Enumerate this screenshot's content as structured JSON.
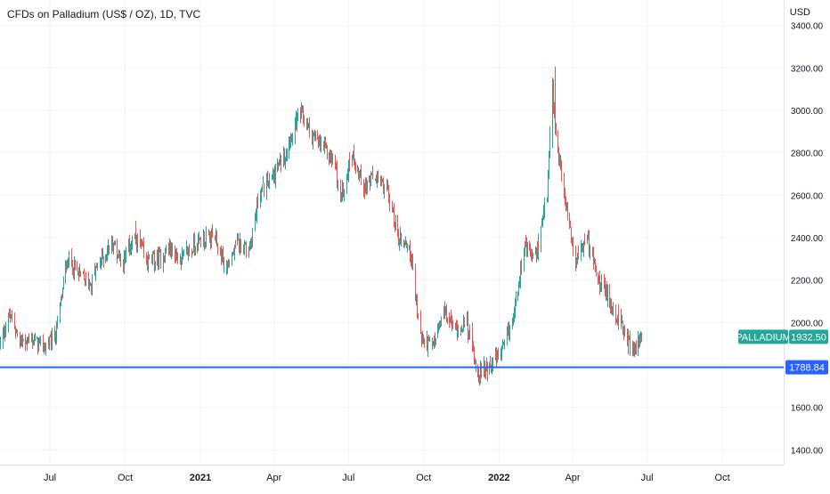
{
  "title": "CFDs on Palladium (US$ / OZ), 1D, TVC",
  "unit": "USD",
  "colors": {
    "up": "#26a69a",
    "down": "#ef5350",
    "grid": "#f0f3fa",
    "hline": "#2962ff",
    "badge_symbol_bg": "#26a69a",
    "badge_hline_bg": "#2962ff"
  },
  "chart_data": {
    "type": "candlestick",
    "title": "CFDs on Palladium (US$ / OZ), 1D, TVC",
    "ylabel": "USD",
    "ylim": [
      1330,
      3520
    ],
    "y_ticks": [
      1400,
      1600,
      1800,
      2000,
      2200,
      2400,
      2600,
      2800,
      3000,
      3200,
      3400
    ],
    "x_ticks": [
      {
        "label": "Jul",
        "date": "2020-07-01",
        "bold": false
      },
      {
        "label": "Oct",
        "date": "2020-10-01",
        "bold": false
      },
      {
        "label": "2021",
        "date": "2021-01-01",
        "bold": true
      },
      {
        "label": "Apr",
        "date": "2021-04-01",
        "bold": false
      },
      {
        "label": "Jul",
        "date": "2021-07-01",
        "bold": false
      },
      {
        "label": "Oct",
        "date": "2021-10-01",
        "bold": false
      },
      {
        "label": "2022",
        "date": "2022-01-01",
        "bold": true
      },
      {
        "label": "Apr",
        "date": "2022-04-01",
        "bold": false
      },
      {
        "label": "Jul",
        "date": "2022-07-01",
        "bold": false
      },
      {
        "label": "Oct",
        "date": "2022-10-01",
        "bold": false
      }
    ],
    "date_range": [
      "2020-05-01",
      "2022-12-15"
    ],
    "last_date": "2022-06-24",
    "close_path": [
      [
        "2020-05-01",
        1900
      ],
      [
        "2020-05-12",
        2030
      ],
      [
        "2020-05-25",
        1910
      ],
      [
        "2020-06-10",
        1920
      ],
      [
        "2020-06-25",
        1880
      ],
      [
        "2020-07-08",
        1950
      ],
      [
        "2020-07-22",
        2300
      ],
      [
        "2020-08-05",
        2220
      ],
      [
        "2020-08-18",
        2180
      ],
      [
        "2020-09-01",
        2290
      ],
      [
        "2020-09-15",
        2380
      ],
      [
        "2020-09-28",
        2280
      ],
      [
        "2020-10-12",
        2420
      ],
      [
        "2020-10-26",
        2290
      ],
      [
        "2020-11-09",
        2290
      ],
      [
        "2020-11-23",
        2350
      ],
      [
        "2020-12-07",
        2300
      ],
      [
        "2020-12-21",
        2350
      ],
      [
        "2021-01-04",
        2400
      ],
      [
        "2021-01-18",
        2400
      ],
      [
        "2021-02-01",
        2250
      ],
      [
        "2021-02-15",
        2370
      ],
      [
        "2021-03-01",
        2350
      ],
      [
        "2021-03-15",
        2620
      ],
      [
        "2021-03-29",
        2680
      ],
      [
        "2021-04-12",
        2780
      ],
      [
        "2021-04-26",
        2930
      ],
      [
        "2021-05-04",
        2980
      ],
      [
        "2021-05-17",
        2880
      ],
      [
        "2021-05-31",
        2820
      ],
      [
        "2021-06-14",
        2750
      ],
      [
        "2021-06-21",
        2580
      ],
      [
        "2021-07-05",
        2800
      ],
      [
        "2021-07-19",
        2640
      ],
      [
        "2021-08-02",
        2680
      ],
      [
        "2021-08-16",
        2640
      ],
      [
        "2021-08-30",
        2400
      ],
      [
        "2021-09-13",
        2360
      ],
      [
        "2021-09-27",
        1930
      ],
      [
        "2021-10-11",
        1880
      ],
      [
        "2021-10-25",
        2050
      ],
      [
        "2021-11-08",
        1970
      ],
      [
        "2021-11-22",
        2000
      ],
      [
        "2021-12-06",
        1760
      ],
      [
        "2021-12-20",
        1800
      ],
      [
        "2022-01-03",
        1850
      ],
      [
        "2022-01-17",
        2000
      ],
      [
        "2022-01-31",
        2350
      ],
      [
        "2022-02-14",
        2300
      ],
      [
        "2022-02-28",
        2600
      ],
      [
        "2022-03-07",
        3000
      ],
      [
        "2022-03-21",
        2600
      ],
      [
        "2022-04-04",
        2300
      ],
      [
        "2022-04-18",
        2400
      ],
      [
        "2022-05-02",
        2200
      ],
      [
        "2022-05-16",
        2100
      ],
      [
        "2022-05-30",
        1980
      ],
      [
        "2022-06-13",
        1860
      ],
      [
        "2022-06-24",
        1932.5
      ]
    ],
    "horizontal_line": {
      "value": 1788.84,
      "label": "1788.84"
    },
    "last_price": {
      "symbol": "PALLADIUM",
      "value": "1932.50",
      "numeric": 1932.5
    },
    "grid": true,
    "legend": "none"
  }
}
